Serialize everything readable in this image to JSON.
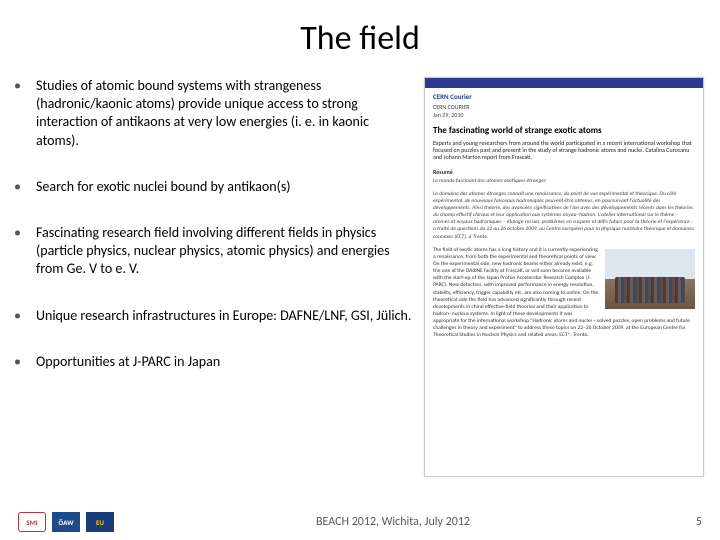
{
  "title": "The field",
  "bullets": [
    "Studies of atomic bound systems with strangeness (hadronic/kaonic atoms) provide unique  access to strong interaction of antikaons at very low energies (i. e. in kaonic atoms).",
    "Search for exotic nuclei bound by antikaon(s)",
    "Fascinating research field involving different fields in physics (particle physics, nuclear physics, atomic physics) and energies from Ge. V to e. V.",
    "Unique research infrastructures in Europe: DAFNE/LNF, GSI, Jülich.",
    "Opportunities at J-PARC in Japan"
  ],
  "doc": {
    "journal": "CERN Courier",
    "small1": "CERN COURIER",
    "date": "Jan 29, 2010",
    "headline": "The fascinating world of strange exotic atoms",
    "lead": "Experts and young researchers from around the world participated in a recent international workshop that focused on puzzles past and present in the study of strange hadronic atoms and nuclei. Catalina Curceanu and Johann Marton report from Frascati.",
    "resume_label": "Résumé",
    "resume_title": "Le monde fascinant des atomes exotiques étranges",
    "resume": "Le domaine des atomes étranges connaît une renaissance, du point de vue expérimental et théorique. Du côté expérimental, de nouveaux faisceaux hadroniques peuvent être obtenus, en poursuivant l'actualité des développements. Ainsi théorie, des avancées significatives de l'ion avec des développements récents dans les théories du champ effectif chiraux et leur application aux systèmes noyau–hadron. L'atelier international sur le thème – atomes et noyaux hadroniques – étaloge rossier, problèmes en suspens et défis futurs pour la théorie et l'expérience – a traité de questions du 22 au 26 octobre 2009, au Centre européen pour la physique nucléaire théorique et domaines connexes (ECT), à Trente.",
    "body": "The field of exotic atoms has a long history and it is currently experiencing a renaissance, from both the experimental and theoretical points of view. On the experimental side, new hadronic beams either already exist, e.g. the one at the DAΦNE facility at Frascati, or will soon become available with the start-up of the Japan Proton Accelerator Research Complex (J-PARC). New detectors, with improved performance in energy resolution, stability, efficiency, trigger capability etc, are also coming to online. On the theoretical side the field has advanced significantly through recent developments in chiral effective-field theories and their application to hadron–nucleus systems. In light of these developments it was appropriate for the international workshop \"Hadronic atoms and nuclei – solved puzzles, open problems and future challenges in theory and experiment\" to address these topics on 22–26 October 2009, at the European Centre for Theoretical Studies in Nuclear Physics and related areas, ECT*, Trento."
  },
  "footer": {
    "center": "BEACH 2012, Wichita, July 2012",
    "page": "5",
    "logos": {
      "l1": "SMI",
      "l2": "ÖAW",
      "l3": "EU"
    }
  }
}
